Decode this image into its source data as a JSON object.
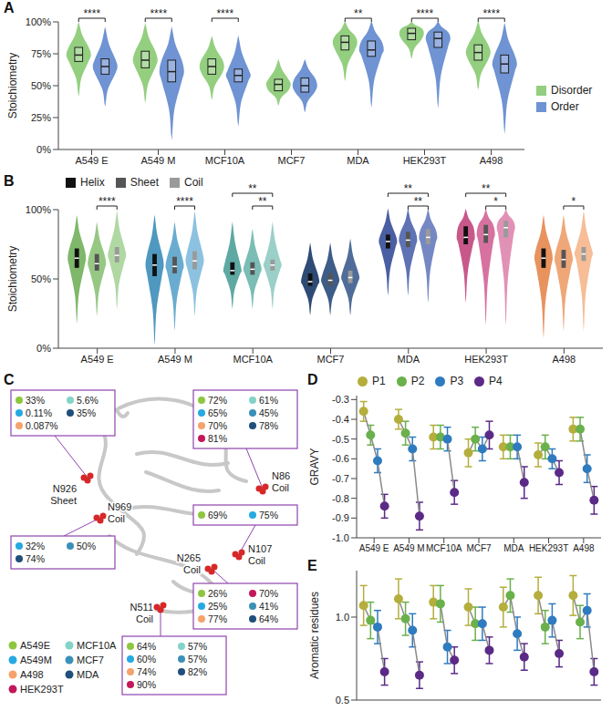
{
  "chart_data": [
    {
      "panel": "A",
      "type": "violin",
      "y_label": "Stoichiometry",
      "categories": [
        "A549 E",
        "A549 M",
        "MCF10A",
        "MCF7",
        "MDA",
        "HEK293T",
        "A498"
      ],
      "series": [
        {
          "name": "Disorder",
          "color": "#93cf7f",
          "min": [
            43,
            38,
            40,
            35,
            55,
            72,
            48
          ],
          "q1": [
            69,
            64,
            59,
            46,
            78,
            86,
            70
          ],
          "median": [
            74,
            70,
            65,
            51,
            84,
            91,
            76
          ],
          "q3": [
            80,
            77,
            71,
            55,
            89,
            95,
            82
          ],
          "max": [
            99,
            98,
            88,
            70,
            100,
            100,
            100
          ]
        },
        {
          "name": "Order",
          "color": "#6f93d3",
          "min": [
            35,
            10,
            20,
            30,
            35,
            35,
            15
          ],
          "q1": [
            59,
            53,
            53,
            45,
            73,
            80,
            60
          ],
          "median": [
            65,
            61,
            58,
            50,
            78,
            87,
            67
          ],
          "q3": [
            71,
            70,
            63,
            56,
            85,
            92,
            74
          ],
          "max": [
            95,
            95,
            88,
            70,
            100,
            100,
            98
          ]
        }
      ],
      "ylim": [
        0,
        100
      ],
      "yticks": [
        {
          "value": 0,
          "label": "0%"
        },
        {
          "value": 25,
          "label": "25%"
        },
        {
          "value": 50,
          "label": "50%"
        },
        {
          "value": 75,
          "label": "75%"
        },
        {
          "value": 100,
          "label": "100%"
        }
      ],
      "annotations": [
        {
          "category": "A549 E",
          "from": "Disorder",
          "to": "Order",
          "label": "****"
        },
        {
          "category": "A549 M",
          "from": "Disorder",
          "to": "Order",
          "label": "****"
        },
        {
          "category": "MCF10A",
          "from": "Disorder",
          "to": "Order",
          "label": "****"
        },
        {
          "category": "MDA",
          "from": "Disorder",
          "to": "Order",
          "label": "**"
        },
        {
          "category": "HEK293T",
          "from": "Disorder",
          "to": "Order",
          "label": "****"
        },
        {
          "category": "A498",
          "from": "Disorder",
          "to": "Order",
          "label": "****"
        }
      ],
      "legend": "right"
    },
    {
      "panel": "B",
      "type": "violin",
      "y_label": "Stoichiometry",
      "categories": [
        "A549 E",
        "A549 M",
        "MCF10A",
        "MCF7",
        "MDA",
        "HEK293T",
        "A498"
      ],
      "series": [
        {
          "name": "Helix",
          "color": "#111111",
          "colors": [
            "#7fb86a",
            "#4f98c0",
            "#5fa9a3",
            "#2e4b75",
            "#4a5ea3",
            "#c8588a",
            "#e8935e"
          ],
          "min": [
            20,
            5,
            30,
            25,
            40,
            35,
            10
          ],
          "q1": [
            58,
            52,
            53,
            45,
            72,
            75,
            58
          ],
          "median": [
            65,
            60,
            56,
            48,
            77,
            80,
            65
          ],
          "q3": [
            72,
            68,
            62,
            54,
            82,
            88,
            72
          ],
          "max": [
            95,
            95,
            90,
            75,
            100,
            100,
            95
          ]
        },
        {
          "name": "Sheet",
          "color": "#555555",
          "colors": [
            "#96c884",
            "#6aacd0",
            "#7bbdb6",
            "#3d5c87",
            "#5e72b4",
            "#d772a0",
            "#f0a778"
          ],
          "min": [
            25,
            15,
            30,
            25,
            40,
            20,
            15
          ],
          "q1": [
            56,
            54,
            53,
            45,
            73,
            76,
            58
          ],
          "median": [
            61,
            59,
            57,
            49,
            78,
            82,
            64
          ],
          "q3": [
            68,
            66,
            62,
            54,
            84,
            89,
            71
          ],
          "max": [
            90,
            90,
            85,
            75,
            100,
            100,
            95
          ]
        },
        {
          "name": "Coil",
          "color": "#9a9a9a",
          "colors": [
            "#b0d8a2",
            "#8cc2e0",
            "#9bd0c9",
            "#4f6d98",
            "#7588c4",
            "#e291b6",
            "#f6bd96"
          ],
          "min": [
            30,
            25,
            30,
            25,
            35,
            20,
            15
          ],
          "q1": [
            62,
            57,
            56,
            47,
            75,
            80,
            63
          ],
          "median": [
            67,
            63,
            60,
            51,
            80,
            87,
            68
          ],
          "q3": [
            73,
            70,
            64,
            56,
            86,
            92,
            73
          ],
          "max": [
            98,
            98,
            90,
            78,
            100,
            100,
            98
          ]
        }
      ],
      "ylim": [
        0,
        100
      ],
      "yticks": [
        {
          "value": 0,
          "label": "0%"
        },
        {
          "value": 50,
          "label": "50%"
        },
        {
          "value": 100,
          "label": "100%"
        }
      ],
      "annotations": [
        {
          "category": "A549 E",
          "from": "Sheet",
          "to": "Coil",
          "label": "****"
        },
        {
          "category": "A549 M",
          "from": "Sheet",
          "to": "Coil",
          "label": "****"
        },
        {
          "category": "MCF10A",
          "from": "Helix",
          "to": "Coil",
          "label": "**"
        },
        {
          "category": "MCF10A",
          "from": "Sheet",
          "to": "Coil",
          "label": "**"
        },
        {
          "category": "MDA",
          "from": "Helix",
          "to": "Coil",
          "label": "**"
        },
        {
          "category": "MDA",
          "from": "Sheet",
          "to": "Coil",
          "label": "**"
        },
        {
          "category": "HEK293T",
          "from": "Helix",
          "to": "Coil",
          "label": "**"
        },
        {
          "category": "HEK293T",
          "from": "Sheet",
          "to": "Coil",
          "label": "*"
        },
        {
          "category": "A498",
          "from": "Sheet",
          "to": "Coil",
          "label": "*"
        }
      ],
      "legend": "top"
    },
    {
      "panel": "C",
      "type": "diagram",
      "sites": [
        {
          "label": "N926",
          "structure": "Sheet",
          "values": [
            {
              "cell_line": "A549E",
              "text": "33%"
            },
            {
              "cell_line": "MCF10A",
              "text": "5.6%"
            },
            {
              "cell_line": "A549M",
              "text": "0.11%"
            },
            {
              "cell_line": "MDA",
              "text": "35%"
            },
            {
              "cell_line": "A498",
              "text": "0.087%"
            }
          ]
        },
        {
          "label": "N86",
          "structure": "Coil",
          "values": [
            {
              "cell_line": "A549E",
              "text": "72%"
            },
            {
              "cell_line": "MCF10A",
              "text": "61%"
            },
            {
              "cell_line": "A549M",
              "text": "65%"
            },
            {
              "cell_line": "MCF7",
              "text": "45%"
            },
            {
              "cell_line": "A498",
              "text": "70%"
            },
            {
              "cell_line": "MDA",
              "text": "78%"
            },
            {
              "cell_line": "HEK293T",
              "text": "81%"
            }
          ]
        },
        {
          "label": "N107",
          "structure": "Coil",
          "values": [
            {
              "cell_line": "A549E",
              "text": "69%"
            },
            {
              "cell_line": "A549M",
              "text": "75%"
            }
          ]
        },
        {
          "label": "N969",
          "structure": "Coil",
          "values": [
            {
              "cell_line": "A549M",
              "text": "32%"
            },
            {
              "cell_line": "MCF7",
              "text": "50%"
            },
            {
              "cell_line": "MDA",
              "text": "74%"
            }
          ]
        },
        {
          "label": "N265",
          "structure": "Coil",
          "values": [
            {
              "cell_line": "A549E",
              "text": "26%"
            },
            {
              "cell_line": "HEK293T",
              "text": "70%"
            },
            {
              "cell_line": "A549M",
              "text": "25%"
            },
            {
              "cell_line": "MCF7",
              "text": "41%"
            },
            {
              "cell_line": "A498",
              "text": "77%"
            },
            {
              "cell_line": "MDA",
              "text": "64%"
            }
          ]
        },
        {
          "label": "N511",
          "structure": "Coil",
          "values": [
            {
              "cell_line": "A549E",
              "text": "64%"
            },
            {
              "cell_line": "MCF10A",
              "text": "57%"
            },
            {
              "cell_line": "A549M",
              "text": "60%"
            },
            {
              "cell_line": "MCF7",
              "text": "57%"
            },
            {
              "cell_line": "A498",
              "text": "74%"
            },
            {
              "cell_line": "MDA",
              "text": "82%"
            },
            {
              "cell_line": "HEK293T",
              "text": "90%"
            }
          ]
        }
      ],
      "cell_lines": [
        {
          "name": "A549E",
          "color": "#8dc63f"
        },
        {
          "name": "MCF10A",
          "color": "#83d3c9"
        },
        {
          "name": "A549M",
          "color": "#27a9e1"
        },
        {
          "name": "MCF7",
          "color": "#3a91b8"
        },
        {
          "name": "A498",
          "color": "#f5a36c"
        },
        {
          "name": "MDA",
          "color": "#1f4f7a"
        },
        {
          "name": "HEK293T",
          "color": "#c2185b"
        }
      ]
    },
    {
      "panel": "D",
      "type": "scatter",
      "y_label": "GRAVY",
      "marker": "circle",
      "categories": [
        "A549 E",
        "A549 M",
        "MCF10A",
        "MCF7",
        "MDA",
        "HEK293T",
        "A498"
      ],
      "series": [
        {
          "name": "P1",
          "color": "#b4ae3c",
          "values": [
            -0.36,
            -0.4,
            -0.49,
            -0.57,
            -0.54,
            -0.58,
            -0.45
          ],
          "errors": [
            0.05,
            0.05,
            0.06,
            0.07,
            0.06,
            0.06,
            0.06
          ]
        },
        {
          "name": "P2",
          "color": "#6ab04c",
          "values": [
            -0.48,
            -0.47,
            -0.49,
            -0.5,
            -0.54,
            -0.54,
            -0.45
          ],
          "errors": [
            0.05,
            0.06,
            0.06,
            0.06,
            0.06,
            0.06,
            0.06
          ]
        },
        {
          "name": "P3",
          "color": "#2f7bbf",
          "values": [
            -0.61,
            -0.55,
            -0.5,
            -0.55,
            -0.54,
            -0.6,
            -0.65
          ],
          "errors": [
            0.06,
            0.06,
            0.06,
            0.06,
            0.06,
            0.05,
            0.07
          ]
        },
        {
          "name": "P4",
          "color": "#5b2a86",
          "values": [
            -0.84,
            -0.89,
            -0.77,
            -0.48,
            -0.72,
            -0.67,
            -0.81
          ],
          "errors": [
            0.06,
            0.07,
            0.06,
            0.07,
            0.08,
            0.06,
            0.07
          ]
        }
      ],
      "ylim": [
        -1.0,
        -0.28
      ],
      "yticks": [
        {
          "value": -1,
          "label": "-1.0"
        },
        -0.9,
        -0.8,
        -0.7,
        -0.6,
        -0.5,
        -0.4,
        -0.3
      ],
      "legend": "top"
    },
    {
      "panel": "E",
      "type": "scatter",
      "y_label": "Aromatic residues",
      "marker": "circle",
      "tick_labels": "y",
      "categories": [
        "A549 E",
        "A549 M",
        "MCF10A",
        "MCF7",
        "MDA",
        "HEK293T",
        "A498"
      ],
      "series": [
        {
          "name": "P1",
          "color": "#b4ae3c",
          "values": [
            1.07,
            1.11,
            1.09,
            1.06,
            1.06,
            1.13,
            1.13
          ],
          "errors": [
            0.12,
            0.12,
            0.1,
            0.11,
            0.12,
            0.11,
            0.12
          ]
        },
        {
          "name": "P2",
          "color": "#6ab04c",
          "values": [
            0.98,
            0.99,
            1.08,
            0.96,
            1.13,
            0.94,
            0.97
          ],
          "errors": [
            0.11,
            0.1,
            0.11,
            0.1,
            0.1,
            0.1,
            0.1
          ]
        },
        {
          "name": "P3",
          "color": "#2f7bbf",
          "values": [
            0.94,
            0.92,
            0.82,
            0.96,
            0.9,
            0.98,
            1.04
          ],
          "errors": [
            0.1,
            0.1,
            0.1,
            0.1,
            0.1,
            0.1,
            0.1
          ]
        },
        {
          "name": "P4",
          "color": "#5b2a86",
          "values": [
            0.67,
            0.65,
            0.74,
            0.8,
            0.76,
            0.78,
            0.67
          ],
          "errors": [
            0.08,
            0.08,
            0.08,
            0.08,
            0.08,
            0.08,
            0.08
          ]
        }
      ],
      "ylim": [
        0.5,
        1.28
      ],
      "yticks": [
        0.5,
        {
          "value": 1,
          "label": "1.0"
        }
      ]
    }
  ]
}
